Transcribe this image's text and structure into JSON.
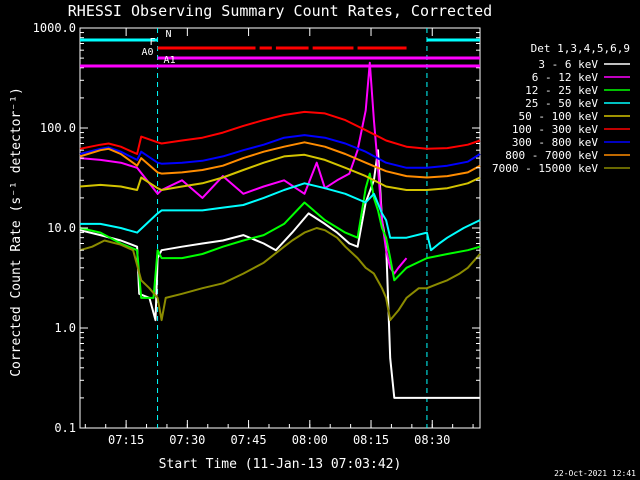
{
  "chart_data": {
    "type": "line",
    "title": "RHESSI Observing Summary Count Rates, Corrected",
    "xlabel": "Start Time (11-Jan-13 07:03:42)",
    "ylabel": "Corrected Count Rate (s⁻¹ detector⁻¹)",
    "x_unit": "minutes after 07:03:42",
    "xlim": [
      0,
      98
    ],
    "ylim": [
      0.1,
      1000
    ],
    "y_scale": "log",
    "x_tick_labels": [
      "07:15",
      "07:30",
      "07:45",
      "08:00",
      "08:15",
      "08:30"
    ],
    "x_tick_values": [
      11.3,
      26.3,
      41.3,
      56.3,
      71.3,
      86.3
    ],
    "y_tick_labels": [
      "0.1",
      "1.0",
      "10.0",
      "100.0",
      "1000.0"
    ],
    "y_tick_values": [
      0.1,
      1,
      10,
      100,
      1000
    ],
    "footer_date": "22-Oct-2021 12:41",
    "legend": {
      "title": "Det 1,3,4,5,6,9",
      "placement": "right",
      "entries": [
        {
          "label": "3 - 6 keV",
          "color": "#ffffff"
        },
        {
          "label": "6 - 12 keV",
          "color": "#ff00ff"
        },
        {
          "label": "12 - 25 keV",
          "color": "#00ff00"
        },
        {
          "label": "25 - 50 keV",
          "color": "#00ffff"
        },
        {
          "label": "50 - 100 keV",
          "color": "#d4c400"
        },
        {
          "label": "100 - 300 keV",
          "color": "#ff0000"
        },
        {
          "label": "300 - 800 keV",
          "color": "#0000ff"
        },
        {
          "label": "800 - 7000 keV",
          "color": "#ff8c00"
        },
        {
          "label": "7000 - 15000 keV",
          "color": "#8b8b00"
        }
      ]
    },
    "flags": [
      {
        "label": "N",
        "color": "#00ffff",
        "segments": [
          [
            0,
            19
          ],
          [
            85,
            98
          ]
        ]
      },
      {
        "label": "F",
        "color": "#ff0000",
        "segments": [
          [
            19,
            43
          ],
          [
            44,
            47
          ],
          [
            48,
            56
          ],
          [
            57,
            67
          ],
          [
            68,
            80
          ]
        ]
      },
      {
        "label": "A0",
        "color": "#ff00ff",
        "segments": [
          [
            19,
            98
          ]
        ]
      },
      {
        "label": "A1",
        "color": "#ff00ff",
        "segments": [
          [
            0,
            98
          ]
        ]
      }
    ],
    "series": [
      {
        "name": "3 - 6 keV",
        "color": "#ffffff",
        "x": [
          0,
          5,
          10,
          14,
          14.5,
          17,
          18.5,
          19,
          20,
          25,
          30,
          35,
          40,
          45,
          48,
          52,
          56,
          60,
          63,
          66,
          68,
          70,
          72,
          73,
          74,
          75,
          76,
          77,
          78,
          85,
          90,
          95,
          98
        ],
        "y": [
          9.5,
          8.5,
          7.5,
          6.5,
          2.2,
          2.0,
          1.2,
          5.0,
          6.0,
          6.5,
          7.0,
          7.5,
          8.5,
          7.0,
          6.0,
          9.0,
          14,
          11,
          9.0,
          7.0,
          6.5,
          18,
          30,
          60,
          12,
          7.0,
          0.5,
          0.2,
          0.2,
          0.2,
          0.2,
          0.2,
          0.2
        ]
      },
      {
        "name": "6 - 12 keV",
        "color": "#ff00ff",
        "x": [
          0,
          5,
          10,
          14,
          19,
          20,
          25,
          30,
          35,
          40,
          45,
          50,
          55,
          58,
          60,
          63,
          66,
          68,
          70,
          71,
          72,
          73,
          74,
          75,
          76,
          77,
          78,
          80
        ],
        "y": [
          50,
          48,
          45,
          40,
          22,
          24,
          30,
          20,
          33,
          22,
          26,
          30,
          22,
          45,
          25,
          30,
          35,
          60,
          150,
          450,
          120,
          40,
          12,
          6,
          4,
          3.5,
          4,
          5
        ]
      },
      {
        "name": "12 - 25 keV",
        "color": "#00ff00",
        "x": [
          0,
          5,
          10,
          14,
          15,
          18,
          19,
          20,
          25,
          30,
          35,
          40,
          45,
          50,
          55,
          60,
          65,
          68,
          70,
          71,
          72,
          73,
          74,
          75,
          76,
          77,
          80,
          85,
          90,
          95,
          98
        ],
        "y": [
          10,
          9,
          7,
          6,
          2,
          2,
          6,
          5,
          5,
          5.5,
          6.5,
          7.5,
          8.5,
          11,
          18,
          12,
          9,
          8,
          25,
          35,
          20,
          15,
          10,
          8,
          5,
          3,
          4,
          5,
          5.5,
          6,
          6.5
        ]
      },
      {
        "name": "25 - 50 keV",
        "color": "#00ffff",
        "x": [
          0,
          5,
          10,
          14,
          19,
          20,
          25,
          30,
          35,
          40,
          45,
          50,
          55,
          60,
          65,
          70,
          72,
          74,
          75,
          76,
          80,
          85,
          86,
          88,
          90,
          94,
          98
        ],
        "y": [
          11,
          11,
          10,
          9,
          14,
          15,
          15,
          15,
          16,
          17,
          20,
          24,
          28,
          25,
          22,
          18,
          22,
          14,
          12,
          8,
          8,
          9,
          6,
          7,
          8,
          10,
          12
        ]
      },
      {
        "name": "50 - 100 keV",
        "color": "#d4c400",
        "x": [
          0,
          5,
          10,
          14,
          15,
          19,
          20,
          25,
          30,
          35,
          40,
          45,
          50,
          55,
          60,
          65,
          70,
          75,
          80,
          85,
          90,
          95,
          98
        ],
        "y": [
          26,
          27,
          26,
          24,
          32,
          25,
          24,
          26,
          28,
          32,
          38,
          45,
          52,
          54,
          48,
          40,
          33,
          26,
          24,
          24,
          25,
          28,
          32
        ]
      },
      {
        "name": "100 - 300 keV",
        "color": "#ff0000",
        "x": [
          0,
          5,
          7,
          10,
          14,
          15,
          19,
          20,
          25,
          30,
          35,
          40,
          45,
          50,
          55,
          60,
          65,
          70,
          75,
          80,
          85,
          90,
          95,
          98
        ],
        "y": [
          62,
          68,
          70,
          65,
          55,
          82,
          72,
          70,
          75,
          80,
          90,
          105,
          120,
          135,
          145,
          140,
          120,
          95,
          75,
          65,
          62,
          63,
          68,
          75
        ]
      },
      {
        "name": "300 - 800 keV",
        "color": "#0000ff",
        "x": [
          0,
          5,
          7,
          10,
          14,
          15,
          19,
          20,
          25,
          30,
          35,
          40,
          45,
          50,
          55,
          60,
          65,
          70,
          75,
          80,
          85,
          90,
          95,
          98
        ],
        "y": [
          55,
          62,
          64,
          58,
          48,
          58,
          45,
          44,
          45,
          47,
          52,
          60,
          68,
          80,
          85,
          80,
          70,
          58,
          45,
          40,
          40,
          42,
          46,
          55
        ]
      },
      {
        "name": "800 - 7000 keV",
        "color": "#ff8c00",
        "x": [
          0,
          5,
          7,
          10,
          14,
          15,
          19,
          20,
          25,
          30,
          35,
          40,
          45,
          50,
          55,
          60,
          65,
          70,
          75,
          80,
          85,
          90,
          95,
          98
        ],
        "y": [
          52,
          60,
          62,
          55,
          42,
          50,
          36,
          35,
          36,
          38,
          42,
          50,
          58,
          65,
          72,
          65,
          55,
          45,
          37,
          33,
          32,
          33,
          36,
          42
        ]
      },
      {
        "name": "7000 - 15000 keV",
        "color": "#8b8b00",
        "x": [
          0,
          3,
          6,
          10,
          13,
          15,
          17,
          19,
          20,
          21,
          25,
          30,
          35,
          40,
          45,
          50,
          52,
          55,
          58,
          60,
          63,
          65,
          68,
          70,
          72,
          74,
          75,
          76,
          78,
          80,
          83,
          85,
          88,
          90,
          93,
          95,
          98
        ],
        "y": [
          6,
          6.5,
          7.5,
          6.8,
          6,
          3,
          2.5,
          2.0,
          1.2,
          2.0,
          2.2,
          2.5,
          2.8,
          3.5,
          4.5,
          6.5,
          7.5,
          9,
          10,
          9.5,
          8,
          6.5,
          5,
          4,
          3.5,
          2.5,
          2,
          1.2,
          1.5,
          2.0,
          2.5,
          2.5,
          2.8,
          3,
          3.5,
          4,
          5.5
        ]
      }
    ]
  }
}
